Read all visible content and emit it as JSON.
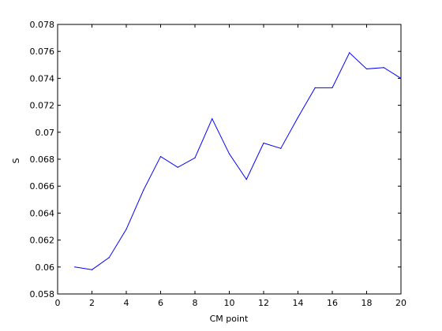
{
  "chart_data": {
    "type": "line",
    "title": "",
    "xlabel": "CM point",
    "ylabel": "S",
    "xlim": [
      0,
      20
    ],
    "ylim": [
      0.058,
      0.078
    ],
    "grid": false,
    "xticks": [
      0,
      2,
      4,
      6,
      8,
      10,
      12,
      14,
      16,
      18,
      20
    ],
    "xtick_labels": [
      "0",
      "2",
      "4",
      "6",
      "8",
      "10",
      "12",
      "14",
      "16",
      "18",
      "20"
    ],
    "yticks": [
      0.058,
      0.06,
      0.062,
      0.064,
      0.066,
      0.068,
      0.07,
      0.072,
      0.074,
      0.076,
      0.078
    ],
    "ytick_labels": [
      "0.058",
      "0.06",
      "0.062",
      "0.064",
      "0.066",
      "0.068",
      "0.07",
      "0.072",
      "0.074",
      "0.076",
      "0.078"
    ],
    "series": [
      {
        "color": "#0000ff",
        "x": [
          1,
          2,
          3,
          4,
          5,
          6,
          7,
          8,
          9,
          10,
          11,
          12,
          13,
          14,
          15,
          16,
          17,
          18,
          19,
          20
        ],
        "y": [
          0.06,
          0.0598,
          0.0607,
          0.0628,
          0.0657,
          0.0682,
          0.0674,
          0.0681,
          0.071,
          0.0684,
          0.0665,
          0.0692,
          0.0688,
          0.0711,
          0.0733,
          0.0733,
          0.0759,
          0.0747,
          0.0748,
          0.074
        ]
      }
    ]
  }
}
